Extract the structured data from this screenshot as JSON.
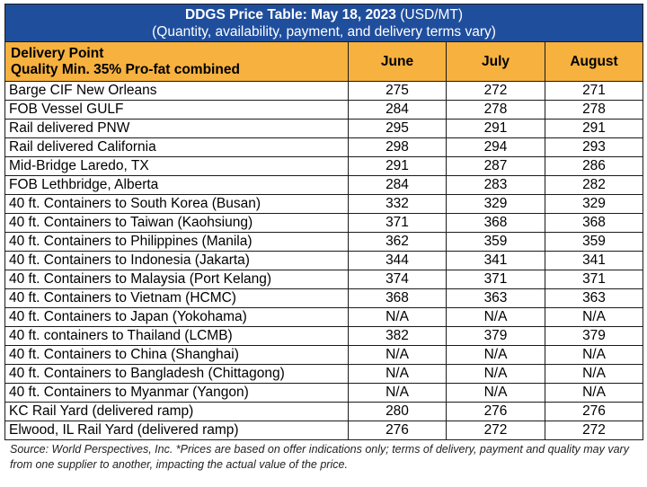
{
  "title": {
    "bold": "DDGS Price Table: May 18, 2023",
    "units": "(USD/MT)",
    "subtitle": "(Quantity, availability, payment, and delivery terms vary)"
  },
  "header": {
    "delivery_line1": "Delivery Point",
    "delivery_line2": "Quality Min. 35% Pro-fat combined",
    "months": [
      "June",
      "July",
      "August"
    ]
  },
  "rows": [
    {
      "point": "Barge CIF New Orleans",
      "june": "275",
      "july": "272",
      "august": "271"
    },
    {
      "point": "FOB Vessel GULF",
      "june": "284",
      "july": "278",
      "august": "278"
    },
    {
      "point": "Rail delivered PNW",
      "june": "295",
      "july": "291",
      "august": "291"
    },
    {
      "point": "Rail delivered California",
      "june": "298",
      "july": "294",
      "august": "293"
    },
    {
      "point": "Mid-Bridge Laredo, TX",
      "june": "291",
      "july": "287",
      "august": "286"
    },
    {
      "point": "FOB Lethbridge, Alberta",
      "june": "284",
      "july": "283",
      "august": "282"
    },
    {
      "point": "40 ft. Containers to South Korea (Busan)",
      "june": "332",
      "july": "329",
      "august": "329"
    },
    {
      "point": "40 ft. Containers to Taiwan (Kaohsiung)",
      "june": "371",
      "july": "368",
      "august": "368"
    },
    {
      "point": "40 ft. Containers to Philippines (Manila)",
      "june": "362",
      "july": "359",
      "august": "359"
    },
    {
      "point": "40 ft. Containers to Indonesia (Jakarta)",
      "june": "344",
      "july": "341",
      "august": "341"
    },
    {
      "point": "40 ft. Containers to Malaysia (Port Kelang)",
      "june": "374",
      "july": "371",
      "august": "371"
    },
    {
      "point": "40 ft. Containers to Vietnam (HCMC)",
      "june": "368",
      "july": "363",
      "august": "363"
    },
    {
      "point": "40 ft. Containers to Japan (Yokohama)",
      "june": "N/A",
      "july": "N/A",
      "august": "N/A"
    },
    {
      "point": "40 ft. containers to Thailand (LCMB)",
      "june": "382",
      "july": "379",
      "august": "379"
    },
    {
      "point": "40 ft. Containers to China (Shanghai)",
      "june": "N/A",
      "july": "N/A",
      "august": "N/A"
    },
    {
      "point": "40 ft. Containers to Bangladesh (Chittagong)",
      "june": "N/A",
      "july": "N/A",
      "august": "N/A"
    },
    {
      "point": "40 ft. Containers to Myanmar (Yangon)",
      "june": "N/A",
      "july": "N/A",
      "august": "N/A"
    },
    {
      "point": "KC Rail Yard (delivered ramp)",
      "june": "280",
      "july": "276",
      "august": "276"
    },
    {
      "point": "Elwood, IL Rail Yard (delivered ramp)",
      "june": "276",
      "july": "272",
      "august": "272"
    }
  ],
  "source": "Source: World Perspectives, Inc. *Prices are based on offer indications only; terms of delivery, payment and quality may vary from one supplier to another, impacting the actual value of the price.",
  "colors": {
    "title_bg": "#1f4e9d",
    "header_bg": "#f6b13f"
  }
}
